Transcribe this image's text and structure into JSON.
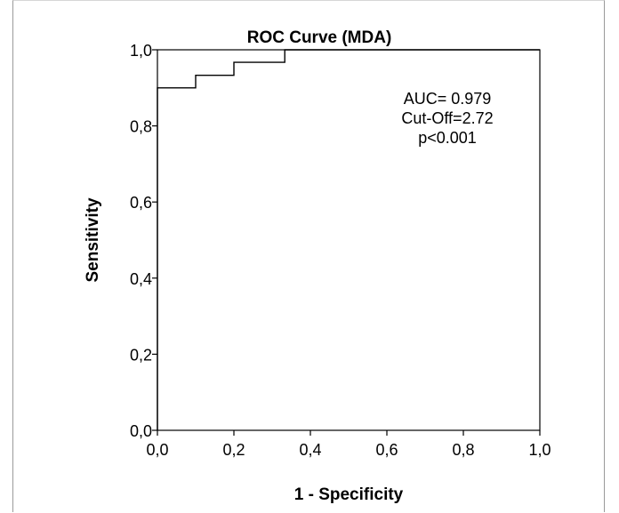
{
  "chart_data": {
    "type": "line",
    "title": "ROC Curve (MDA)",
    "xlabel": "1 - Specificity",
    "ylabel": "Sensitivity",
    "xlim": [
      0,
      1
    ],
    "ylim": [
      0,
      1
    ],
    "x_ticks": [
      0,
      0.2,
      0.4,
      0.6,
      0.8,
      1
    ],
    "y_ticks": [
      0,
      0.2,
      0.4,
      0.6,
      0.8,
      1
    ],
    "x_tick_labels": [
      "0,0",
      "0,2",
      "0,4",
      "0,6",
      "0,8",
      "1,0"
    ],
    "y_tick_labels": [
      "0,0",
      "0,2",
      "0,4",
      "0,6",
      "0,8",
      "1,0"
    ],
    "grid": false,
    "legend": "none",
    "series": [
      {
        "x": [
          0,
          0,
          0.1,
          0.1,
          0.2,
          0.2,
          0.333,
          0.333,
          1
        ],
        "y": [
          0,
          0.9,
          0.9,
          0.933,
          0.933,
          0.967,
          0.967,
          1,
          1
        ]
      }
    ],
    "annotations": [
      "AUC= 0.979",
      "Cut-Off=2.72",
      "p<0.001"
    ]
  }
}
